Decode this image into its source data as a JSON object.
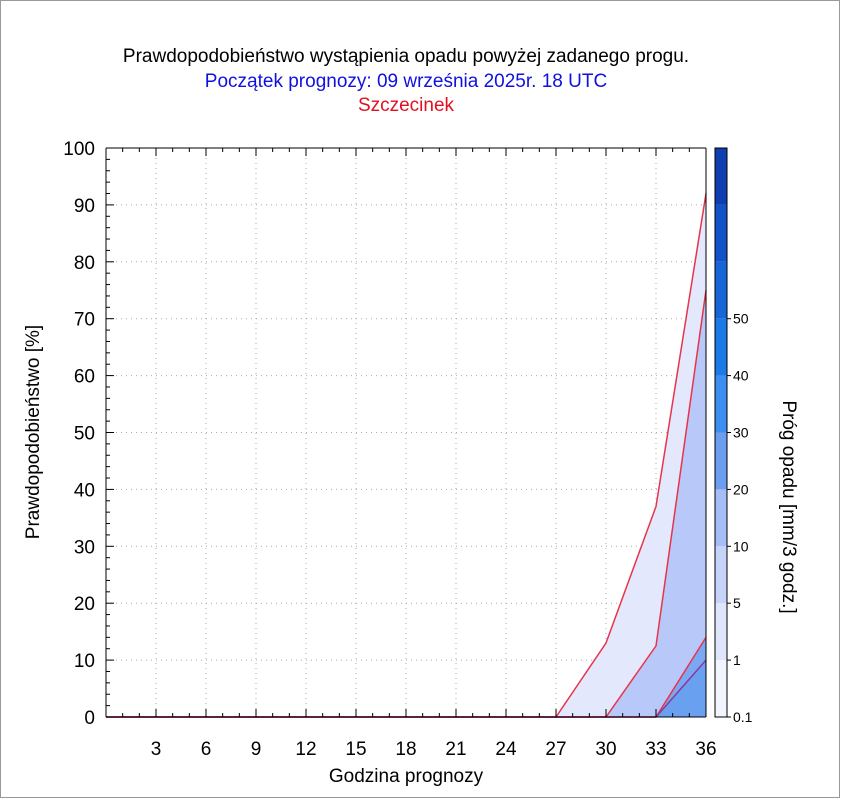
{
  "chart_data": {
    "type": "area",
    "title": "Prawdopodobieństwo wystąpienia opadu powyżej zadanego progu.",
    "subtitle": "Początek prognozy: 09 września 2025r. 18 UTC",
    "location": "Szczecinek",
    "xlabel": "Godzina prognozy",
    "ylabel": "Prawdopodobieństwo [%]",
    "xlim": [
      0,
      36
    ],
    "ylim": [
      0,
      100
    ],
    "xticks": [
      3,
      6,
      9,
      12,
      15,
      18,
      21,
      24,
      27,
      30,
      33,
      36
    ],
    "yticks": [
      0,
      10,
      20,
      30,
      40,
      50,
      60,
      70,
      80,
      90,
      100
    ],
    "grid": true,
    "x": [
      0,
      3,
      6,
      9,
      12,
      15,
      18,
      21,
      24,
      27,
      30,
      33,
      36
    ],
    "series": [
      {
        "threshold": 0.1,
        "color": "#e4e8fd",
        "values": [
          0,
          0,
          0,
          0,
          0,
          0,
          0,
          0,
          0,
          0,
          13,
          37,
          92
        ]
      },
      {
        "threshold": 1,
        "color": "#b8c8f8",
        "values": [
          0,
          0,
          0,
          0,
          0,
          0,
          0,
          0,
          0,
          0,
          0,
          12.5,
          75
        ]
      },
      {
        "threshold": 5,
        "color": "#7aa8f2",
        "values": [
          0,
          0,
          0,
          0,
          0,
          0,
          0,
          0,
          0,
          0,
          0,
          0,
          14
        ]
      },
      {
        "threshold": 10,
        "color": "#6aa0f0",
        "values": [
          0,
          0,
          0,
          0,
          0,
          0,
          0,
          0,
          0,
          0,
          0,
          0,
          10
        ]
      }
    ],
    "colorbar": {
      "label": "Próg opadu [mm/3 godz.]",
      "labels": [
        "0.1",
        "1",
        "5",
        "10",
        "20",
        "30",
        "40",
        "50"
      ],
      "colors": [
        "#f2f4fe",
        "#dfe6fc",
        "#c6d4fa",
        "#a6bef6",
        "#6c9ef0",
        "#3d8ef0",
        "#1c7ae8",
        "#1666d8",
        "#1452c8",
        "#0f3eb0"
      ]
    }
  }
}
